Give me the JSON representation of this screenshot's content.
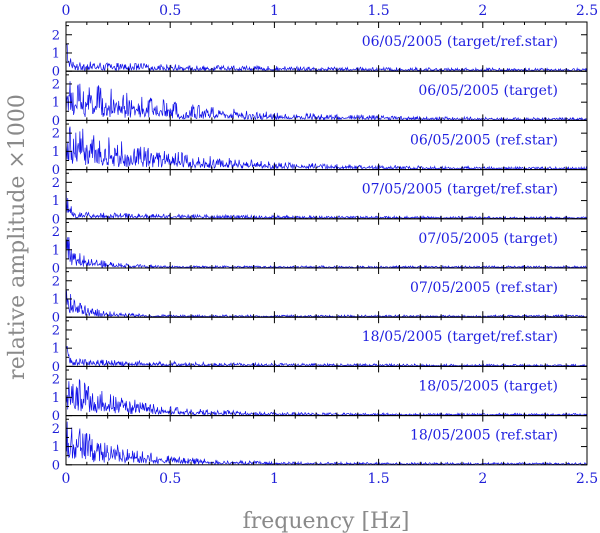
{
  "chart_data": {
    "type": "line",
    "xlabel": "frequency [Hz]",
    "ylabel": "relative amplitude ×1000",
    "xlim": [
      0,
      2.5
    ],
    "ylim": [
      0,
      2.7
    ],
    "xticks": [
      "0",
      "0.5",
      "1",
      "1.5",
      "2",
      "2.5"
    ],
    "yticks": [
      "0",
      "1",
      "2"
    ],
    "grid": false,
    "line_color": "#1010e8",
    "panels": [
      {
        "label": "06/05/2005 (target/ref.star)",
        "spectrum": {
          "lowfreq_peak": 2.0,
          "noise_level": 0.45,
          "decay_hz": 0.9,
          "floor": 0.13
        }
      },
      {
        "label": "06/05/2005 (target)",
        "spectrum": {
          "lowfreq_peak": 2.6,
          "noise_level": 2.4,
          "decay_hz": 0.55,
          "floor": 0.12
        }
      },
      {
        "label": "06/05/2005 (ref.star)",
        "spectrum": {
          "lowfreq_peak": 2.6,
          "noise_level": 2.5,
          "decay_hz": 0.5,
          "floor": 0.12
        }
      },
      {
        "label": "07/05/2005 (target/ref.star)",
        "spectrum": {
          "lowfreq_peak": 2.2,
          "noise_level": 0.3,
          "decay_hz": 0.8,
          "floor": 0.1
        }
      },
      {
        "label": "07/05/2005 (target)",
        "spectrum": {
          "lowfreq_peak": 2.5,
          "noise_level": 1.3,
          "decay_hz": 0.12,
          "floor": 0.12
        }
      },
      {
        "label": "07/05/2005 (ref.star)",
        "spectrum": {
          "lowfreq_peak": 2.4,
          "noise_level": 1.2,
          "decay_hz": 0.12,
          "floor": 0.12
        }
      },
      {
        "label": "18/05/2005 (target/ref.star)",
        "spectrum": {
          "lowfreq_peak": 1.9,
          "noise_level": 0.35,
          "decay_hz": 0.7,
          "floor": 0.1
        }
      },
      {
        "label": "18/05/2005 (target)",
        "spectrum": {
          "lowfreq_peak": 2.6,
          "noise_level": 2.3,
          "decay_hz": 0.3,
          "floor": 0.12
        }
      },
      {
        "label": "18/05/2005 (ref.star)",
        "spectrum": {
          "lowfreq_peak": 2.6,
          "noise_level": 2.4,
          "decay_hz": 0.28,
          "floor": 0.12
        }
      }
    ]
  }
}
